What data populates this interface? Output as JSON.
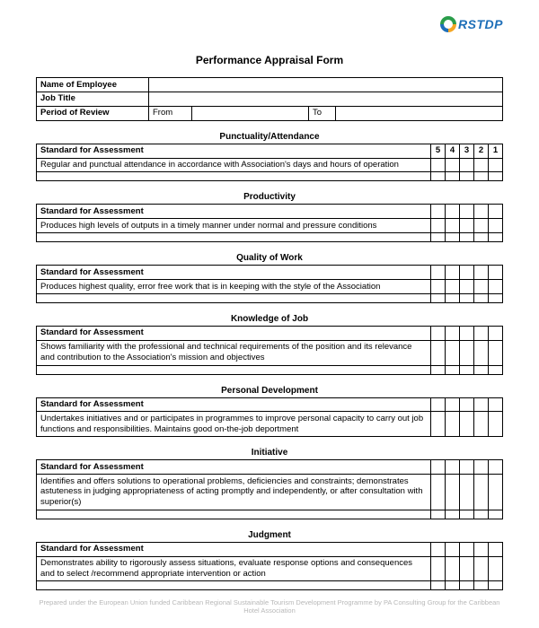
{
  "logo_text": "RSTDP",
  "title": "Performance Appraisal Form",
  "info": {
    "name_label": "Name of Employee",
    "title_label": "Job Title",
    "period_label": "Period of Review",
    "from_label": "From",
    "to_label": "To"
  },
  "rating_headers": [
    "5",
    "4",
    "3",
    "2",
    "1"
  ],
  "standard_header": "Standard for Assessment",
  "sections": [
    {
      "heading": "Punctuality/Attendance",
      "standard": "Regular and punctual attendance in accordance with Association's days and hours of operation",
      "show_ratings_header": true,
      "blank_row": true
    },
    {
      "heading": "Productivity",
      "standard": "Produces high levels of outputs in a timely manner under normal and pressure conditions",
      "show_ratings_header": false,
      "blank_row": true
    },
    {
      "heading": "Quality of Work",
      "standard": "Produces highest quality, error free work that is in keeping with the style of the Association",
      "show_ratings_header": false,
      "blank_row": true
    },
    {
      "heading": "Knowledge of Job",
      "standard": "Shows familiarity with the professional and technical requirements of the position and its relevance and contribution to the Association's mission and objectives",
      "show_ratings_header": false,
      "blank_row": true
    },
    {
      "heading": "Personal Development",
      "standard": "Undertakes initiatives and or participates in programmes to improve personal capacity to carry out job functions and responsibilities.  Maintains good on-the-job deportment",
      "show_ratings_header": false,
      "blank_row": false
    },
    {
      "heading": "Initiative",
      "standard": "Identifies and offers solutions to operational problems, deficiencies and constraints; demonstrates astuteness in judging appropriateness of acting promptly and independently, or after consultation with superior(s)",
      "show_ratings_header": false,
      "blank_row": true
    },
    {
      "heading": "Judgment",
      "standard": "Demonstrates ability to rigorously assess situations, evaluate response options and consequences and to select /recommend appropriate intervention or action",
      "show_ratings_header": false,
      "blank_row": true
    }
  ],
  "footer": "Prepared under the European Union funded Caribbean Regional Sustainable Tourism Development Programme by PA Consulting Group for the Caribbean Hotel Association"
}
